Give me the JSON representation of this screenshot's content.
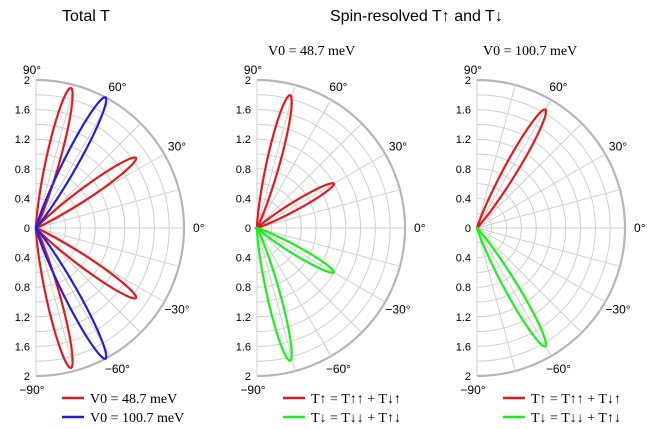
{
  "titles": {
    "left": "Total T",
    "right": "Spin-resolved T↑ and T↓"
  },
  "chart_data": [
    {
      "type": "polar-line",
      "panel": "total",
      "r_ticks": [
        "0",
        "0.4",
        "0.8",
        "1.2",
        "1.6",
        "2"
      ],
      "angle_ticks": [
        "90°",
        "60°",
        "30°",
        "0°",
        "−30°",
        "−60°",
        "−90°"
      ],
      "rlim": [
        0,
        2
      ],
      "angle_range_deg": [
        -90,
        90
      ],
      "annotation": "",
      "legend_position": "bottom",
      "series": [
        {
          "name": "V0 = 48.7 meV",
          "color": "#e31a1c",
          "lobes": [
            {
              "angle_deg": 76,
              "peak": 1.95
            },
            {
              "angle_deg": 35,
              "peak": 1.65
            },
            {
              "angle_deg": -35,
              "peak": 1.65
            },
            {
              "angle_deg": -76,
              "peak": 1.95
            }
          ]
        },
        {
          "name": "V0 = 100.7 meV",
          "color": "#1f1fdd",
          "lobes": [
            {
              "angle_deg": 62,
              "peak": 2.0
            },
            {
              "angle_deg": -62,
              "peak": 2.0
            }
          ]
        }
      ]
    },
    {
      "type": "polar-line",
      "panel": "spin V0 = 48.7 meV",
      "annotation": "V0 = 48.7 meV",
      "r_ticks": [
        "0",
        "0.4",
        "0.8",
        "1.2",
        "1.6",
        "2"
      ],
      "angle_ticks": [
        "90°",
        "60°",
        "30°",
        "0°",
        "−30°",
        "−60°",
        "−90°"
      ],
      "rlim": [
        0,
        2
      ],
      "angle_range_deg": [
        -90,
        90
      ],
      "legend_position": "bottom",
      "series": [
        {
          "name": "T↑ = T↑↑ + T↓↑",
          "color": "#e31a1c",
          "lobes": [
            {
              "angle_deg": 76,
              "peak": 1.85
            },
            {
              "angle_deg": 30,
              "peak": 1.2
            }
          ]
        },
        {
          "name": "T↓ = T↓↓ + T↑↓",
          "color": "#18f018",
          "lobes": [
            {
              "angle_deg": -30,
              "peak": 1.2
            },
            {
              "angle_deg": -76,
              "peak": 1.85
            }
          ]
        }
      ]
    },
    {
      "type": "polar-line",
      "panel": "spin V0 = 100.7 meV",
      "annotation": "V0 = 100.7 meV",
      "r_ticks": [
        "0",
        "0.4",
        "0.8",
        "1.2",
        "1.6",
        "2"
      ],
      "angle_ticks": [
        "90°",
        "60°",
        "30°",
        "0°",
        "−30°",
        "−60°",
        "−90°"
      ],
      "rlim": [
        0,
        2
      ],
      "angle_range_deg": [
        -90,
        90
      ],
      "legend_position": "bottom",
      "series": [
        {
          "name": "T↑ = T↑↑ + T↓↑",
          "color": "#e31a1c",
          "lobes": [
            {
              "angle_deg": 60,
              "peak": 1.85
            }
          ]
        },
        {
          "name": "T↓ = T↓↓ + T↑↓",
          "color": "#18f018",
          "lobes": [
            {
              "angle_deg": -60,
              "peak": 1.85
            }
          ]
        }
      ]
    }
  ]
}
